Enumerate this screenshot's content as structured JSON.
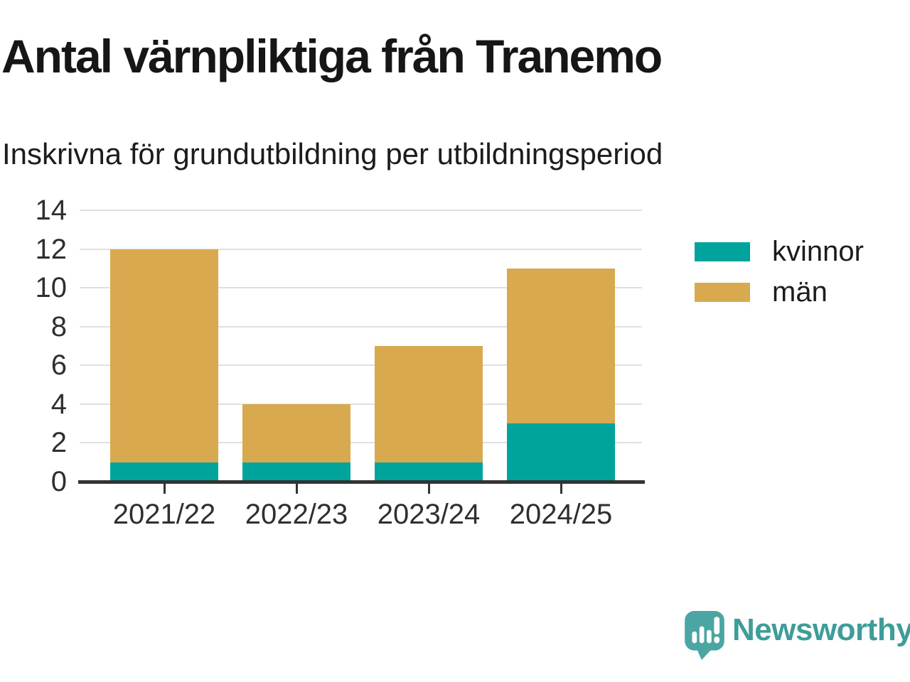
{
  "chart_data": {
    "type": "bar",
    "stacked": true,
    "title": "Antal värnpliktiga från Tranemo",
    "subtitle": "Inskrivna för grundutbildning per utbildningsperiod",
    "categories": [
      "2021/22",
      "2022/23",
      "2023/24",
      "2024/25"
    ],
    "series": [
      {
        "name": "kvinnor",
        "color": "#00A49C",
        "values": [
          1,
          1,
          1,
          3
        ]
      },
      {
        "name": "män",
        "color": "#D9A94F",
        "values": [
          11,
          3,
          6,
          8
        ]
      }
    ],
    "stack_totals": [
      12,
      4,
      7,
      11
    ],
    "xlabel": "",
    "ylabel": "",
    "ylim": [
      0,
      14
    ],
    "yticks": [
      0,
      2,
      4,
      6,
      8,
      10,
      12,
      14
    ],
    "grid": "horizontal",
    "legend_position": "right-top"
  },
  "footer": {
    "brand": "Newsworthy",
    "brand_color": "#3F9D99",
    "logo_color": "#4BA5A2",
    "logo_icon": "speech-bubble-bar-chart-icon"
  },
  "colors": {
    "background": "#FFFFFF",
    "axis_line": "#333333",
    "gridline": "#E0E0E0",
    "title_text": "#161616",
    "tick_label_text": "#2F2F2F"
  }
}
